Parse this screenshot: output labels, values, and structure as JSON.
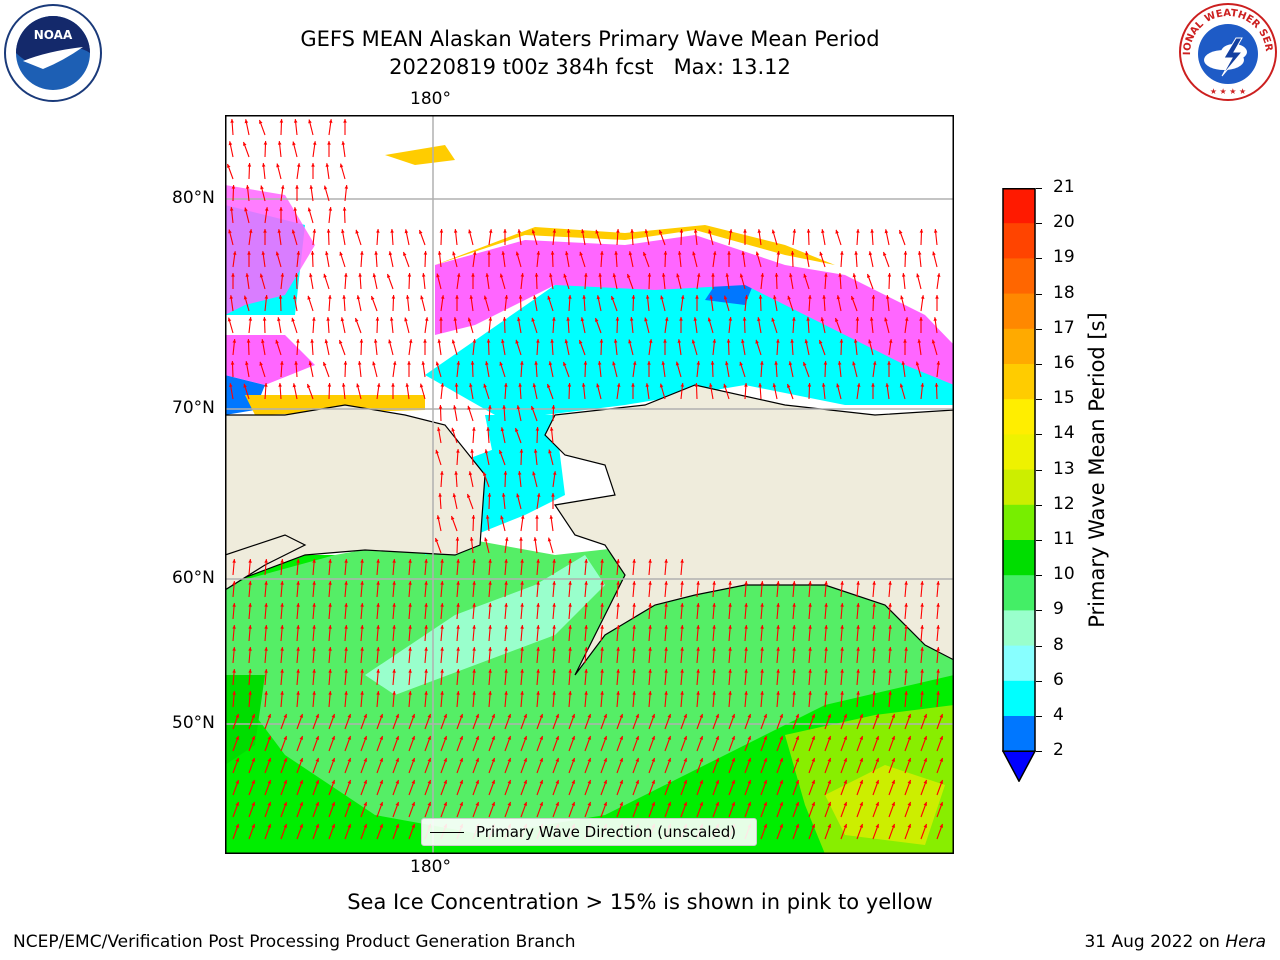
{
  "header": {
    "title_line1": "GEFS MEAN Alaskan Waters Primary Wave Mean Period",
    "title_line2": "20220819 t00z 384h fcst   Max: 13.12"
  },
  "logos": {
    "left": "NOAA",
    "right": "NATIONAL WEATHER SERVICE"
  },
  "map": {
    "top_lon_label": "180°",
    "bottom_lon_label": "180°",
    "lat_labels": [
      "80°N",
      "70°N",
      "60°N",
      "50°N"
    ],
    "legend_label": "Primary Wave Direction (unscaled)",
    "arrow_color": "#ff0000",
    "land_color": "#efecdc",
    "grid_color": "#b0b0b0"
  },
  "colorbar": {
    "label": "Primary Wave Mean Period [s]",
    "ticks": [
      "21",
      "20",
      "19",
      "18",
      "17",
      "16",
      "15",
      "14",
      "13",
      "12",
      "11",
      "10",
      "9",
      "8",
      "6",
      "4",
      "2"
    ],
    "colors": [
      "#ff1a00",
      "#ff4400",
      "#ff6600",
      "#ff8800",
      "#ffaa00",
      "#ffcc00",
      "#ffee00",
      "#eef200",
      "#ccee00",
      "#77ee00",
      "#00dd00",
      "#44ee66",
      "#99ffcc",
      "#88ffff",
      "#00ffff",
      "#0077ff"
    ],
    "under_color": "#0000ff"
  },
  "notes": {
    "ice_note": "Sea Ice Concentration > 15% is shown in pink to yellow",
    "footer_left": "NCEP/EMC/Verification Post Processing Product Generation Branch",
    "footer_date": "31 Aug 2022 on ",
    "footer_machine": "Hera"
  }
}
